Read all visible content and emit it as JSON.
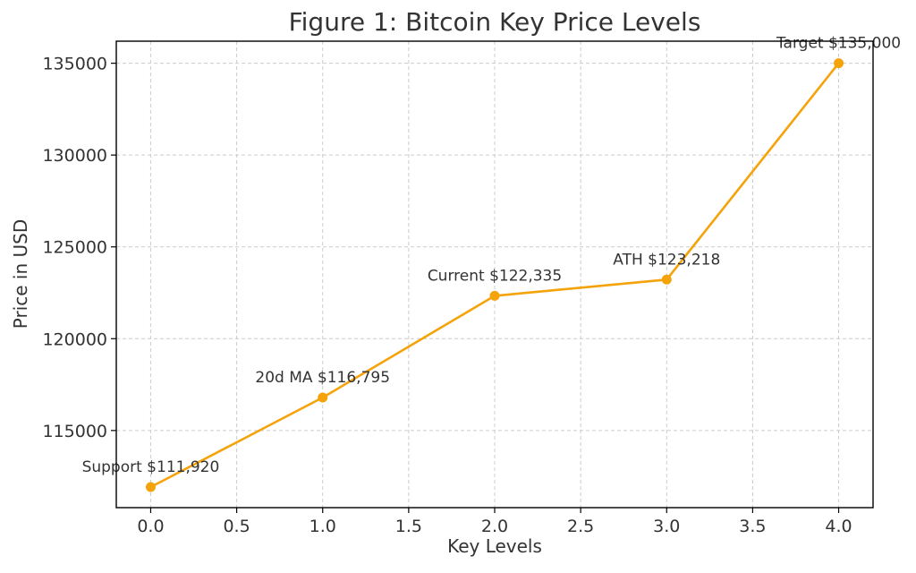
{
  "chart_data": {
    "type": "line",
    "title": "Figure 1: Bitcoin Key Price Levels",
    "xlabel": "Key Levels",
    "ylabel": "Price in USD",
    "x": [
      0,
      1,
      2,
      3,
      4
    ],
    "xlim": [
      -0.2,
      4.2
    ],
    "ylim": [
      110800,
      136200
    ],
    "x_ticks": [
      "0.0",
      "0.5",
      "1.0",
      "1.5",
      "2.0",
      "2.5",
      "3.0",
      "3.5",
      "4.0"
    ],
    "y_ticks": [
      "115000",
      "120000",
      "125000",
      "130000",
      "135000"
    ],
    "grid": true,
    "series": [
      {
        "values": [
          111920,
          116795,
          122335,
          123218,
          135000
        ],
        "color": "#f5a30b"
      }
    ],
    "annotations": [
      "Support $111,920",
      "20d MA $116,795",
      "Current $122,335",
      "ATH $123,218",
      "Target $135,000"
    ]
  }
}
